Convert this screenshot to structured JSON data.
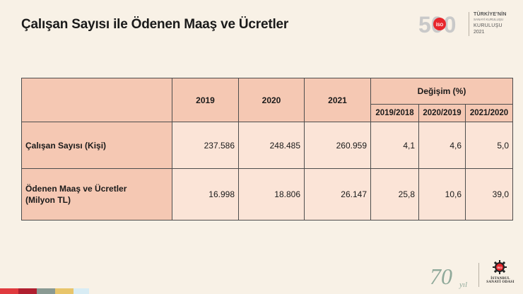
{
  "slide": {
    "title": "Çalışan Sayısı ile Ödenen Maaş ve Ücretler"
  },
  "brand_top": {
    "mark": "500",
    "badge": "İSO",
    "line1": "TÜRKİYE'NİN",
    "line2": "SANAYİ KURULUŞU",
    "line3": "KURULUŞU",
    "line4": "2021"
  },
  "table": {
    "years": [
      "2019",
      "2020",
      "2021"
    ],
    "change_header": "Değişim (%)",
    "change_periods": [
      "2019/2018",
      "2020/2019",
      "2021/2020"
    ],
    "rows": [
      {
        "label": "Çalışan Sayısı (Kişi)",
        "values": [
          "237.586",
          "248.485",
          "260.959"
        ],
        "changes": [
          "4,1",
          "4,6",
          "5,0"
        ]
      },
      {
        "label_line1": "Ödenen Maaş ve Ücretler",
        "label_line2": "(Milyon TL)",
        "values": [
          "16.998",
          "18.806",
          "26.147"
        ],
        "changes": [
          "25,8",
          "10,6",
          "39,0"
        ]
      }
    ]
  },
  "brand_bottom": {
    "anniversary_number": "70",
    "anniversary_word": "yıl",
    "org_line1": "İSTANBUL",
    "org_line2": "SANAYİ ODASI",
    "gear_badge": "İSO"
  },
  "strip_colors": [
    "#e03a3e",
    "#b01f2f",
    "#8a9a93",
    "#e8c56b",
    "#d8ecf4"
  ]
}
